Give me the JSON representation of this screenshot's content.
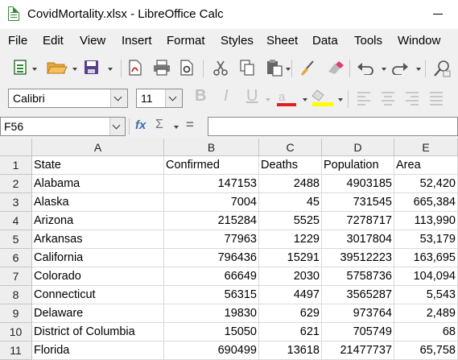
{
  "window": {
    "title": "CovidMortality.xlsx - LibreOffice Calc"
  },
  "menu": [
    "File",
    "Edit",
    "View",
    "Insert",
    "Format",
    "Styles",
    "Sheet",
    "Data",
    "Tools",
    "Window"
  ],
  "toolbar": {
    "font_name": "Calibri",
    "font_size": "11",
    "icons": [
      "new-spreadsheet-icon",
      "open-folder-icon",
      "save-icon",
      "export-pdf-icon",
      "print-icon",
      "print-preview-icon",
      "cut-icon",
      "copy-icon",
      "paste-icon",
      "clone-formatting-icon",
      "clear-formatting-icon",
      "undo-icon",
      "redo-icon",
      "find-replace-icon"
    ],
    "font_color": "#e02020",
    "highlight_color": "#ffff00"
  },
  "formula_bar": {
    "name_box": "F56",
    "fx_label": "fx",
    "sigma_label": "Σ",
    "equals_label": "=",
    "content": ""
  },
  "sheet": {
    "columns": [
      "A",
      "B",
      "C",
      "D",
      "E"
    ],
    "rows": [
      {
        "n": "1",
        "cells": [
          "State",
          "Confirmed",
          "Deaths",
          "Population",
          "Area"
        ]
      },
      {
        "n": "2",
        "cells": [
          "Alabama",
          "147153",
          "2488",
          "4903185",
          "52,420"
        ]
      },
      {
        "n": "3",
        "cells": [
          "Alaska",
          "7004",
          "45",
          "731545",
          "665,384"
        ]
      },
      {
        "n": "4",
        "cells": [
          "Arizona",
          "215284",
          "5525",
          "7278717",
          "113,990"
        ]
      },
      {
        "n": "5",
        "cells": [
          "Arkansas",
          "77963",
          "1229",
          "3017804",
          "53,179"
        ]
      },
      {
        "n": "6",
        "cells": [
          "California",
          "796436",
          "15291",
          "39512223",
          "163,695"
        ]
      },
      {
        "n": "7",
        "cells": [
          "Colorado",
          "66649",
          "2030",
          "5758736",
          "104,094"
        ]
      },
      {
        "n": "8",
        "cells": [
          "Connecticut",
          "56315",
          "4497",
          "3565287",
          "5,543"
        ]
      },
      {
        "n": "9",
        "cells": [
          "Delaware",
          "19830",
          "629",
          "973764",
          "2,489"
        ]
      },
      {
        "n": "10",
        "cells": [
          "District of Columbia",
          "15050",
          "621",
          "705749",
          "68"
        ]
      },
      {
        "n": "11",
        "cells": [
          "Florida",
          "690499",
          "13618",
          "21477737",
          "65,758"
        ]
      }
    ]
  }
}
